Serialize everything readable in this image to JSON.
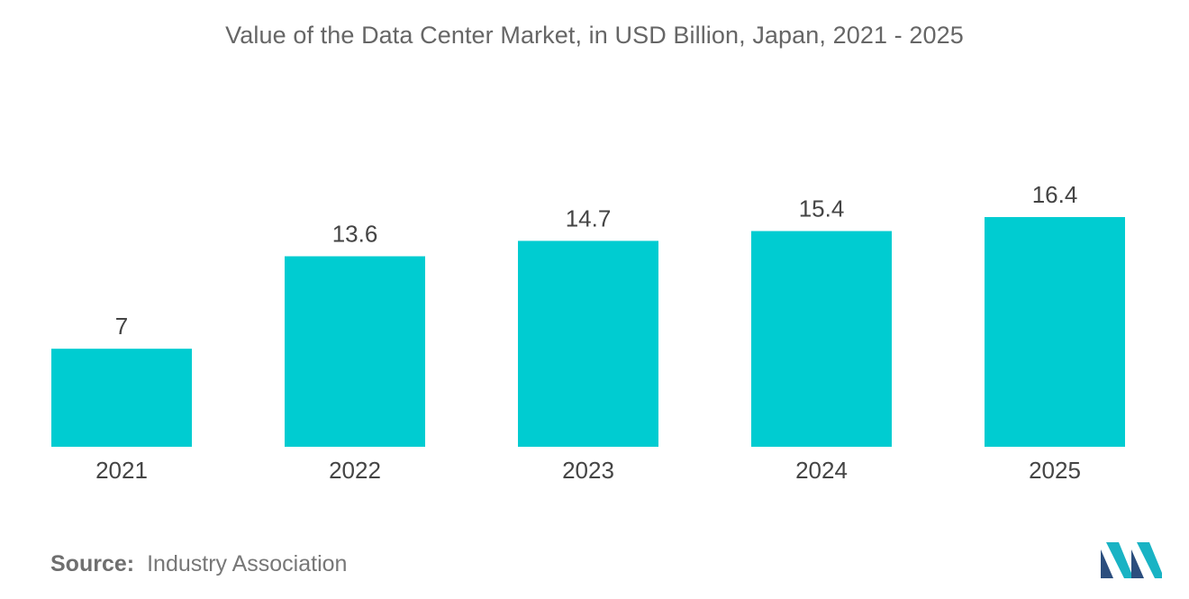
{
  "chart_data": {
    "type": "bar",
    "title": "Value of the Data Center Market, in USD Billion, Japan, 2021 - 2025",
    "categories": [
      "2021",
      "2022",
      "2023",
      "2024",
      "2025"
    ],
    "values": [
      7,
      13.6,
      14.7,
      15.4,
      16.4
    ],
    "data_labels": [
      "7",
      "13.6",
      "14.7",
      "15.4",
      "16.4"
    ],
    "xlabel": "",
    "ylabel": "",
    "ylim": [
      0,
      16.4
    ],
    "grid": false,
    "bar_color": "#00ccd1"
  },
  "source": {
    "label": "Source:",
    "value": "Industry Association"
  },
  "logo": {
    "icon": "mordor-intelligence-logo-icon",
    "colors": [
      "#2b4e7e",
      "#19b3c4"
    ]
  }
}
